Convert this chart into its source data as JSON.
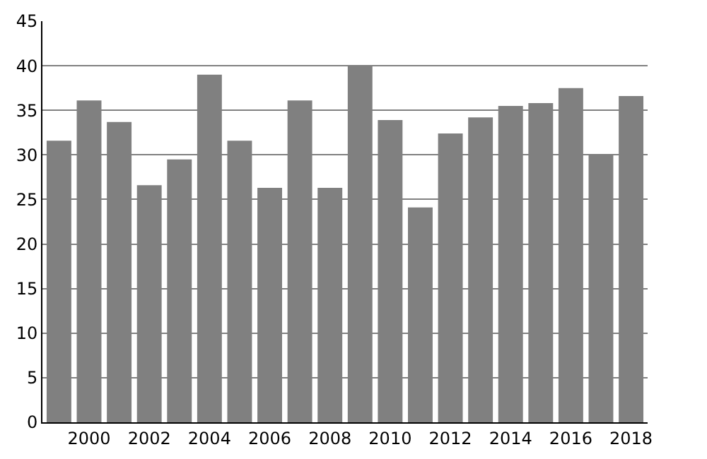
{
  "chart_data": {
    "type": "bar",
    "categories": [
      null,
      "2000",
      null,
      "2002",
      null,
      "2004",
      null,
      "2006",
      null,
      "2008",
      null,
      "2010",
      null,
      "2012",
      null,
      "2014",
      null,
      "2016",
      null,
      "2018"
    ],
    "values": [
      31.6,
      36.1,
      33.7,
      26.6,
      29.5,
      39.0,
      31.6,
      26.3,
      36.1,
      26.3,
      40.0,
      33.9,
      24.1,
      32.4,
      34.2,
      35.5,
      35.8,
      37.5,
      30.1,
      36.6
    ],
    "color": "#808080",
    "ylim": [
      0,
      45
    ],
    "yticks": [
      0,
      5,
      10,
      15,
      20,
      25,
      30,
      35,
      40,
      45
    ],
    "grid": "y"
  }
}
